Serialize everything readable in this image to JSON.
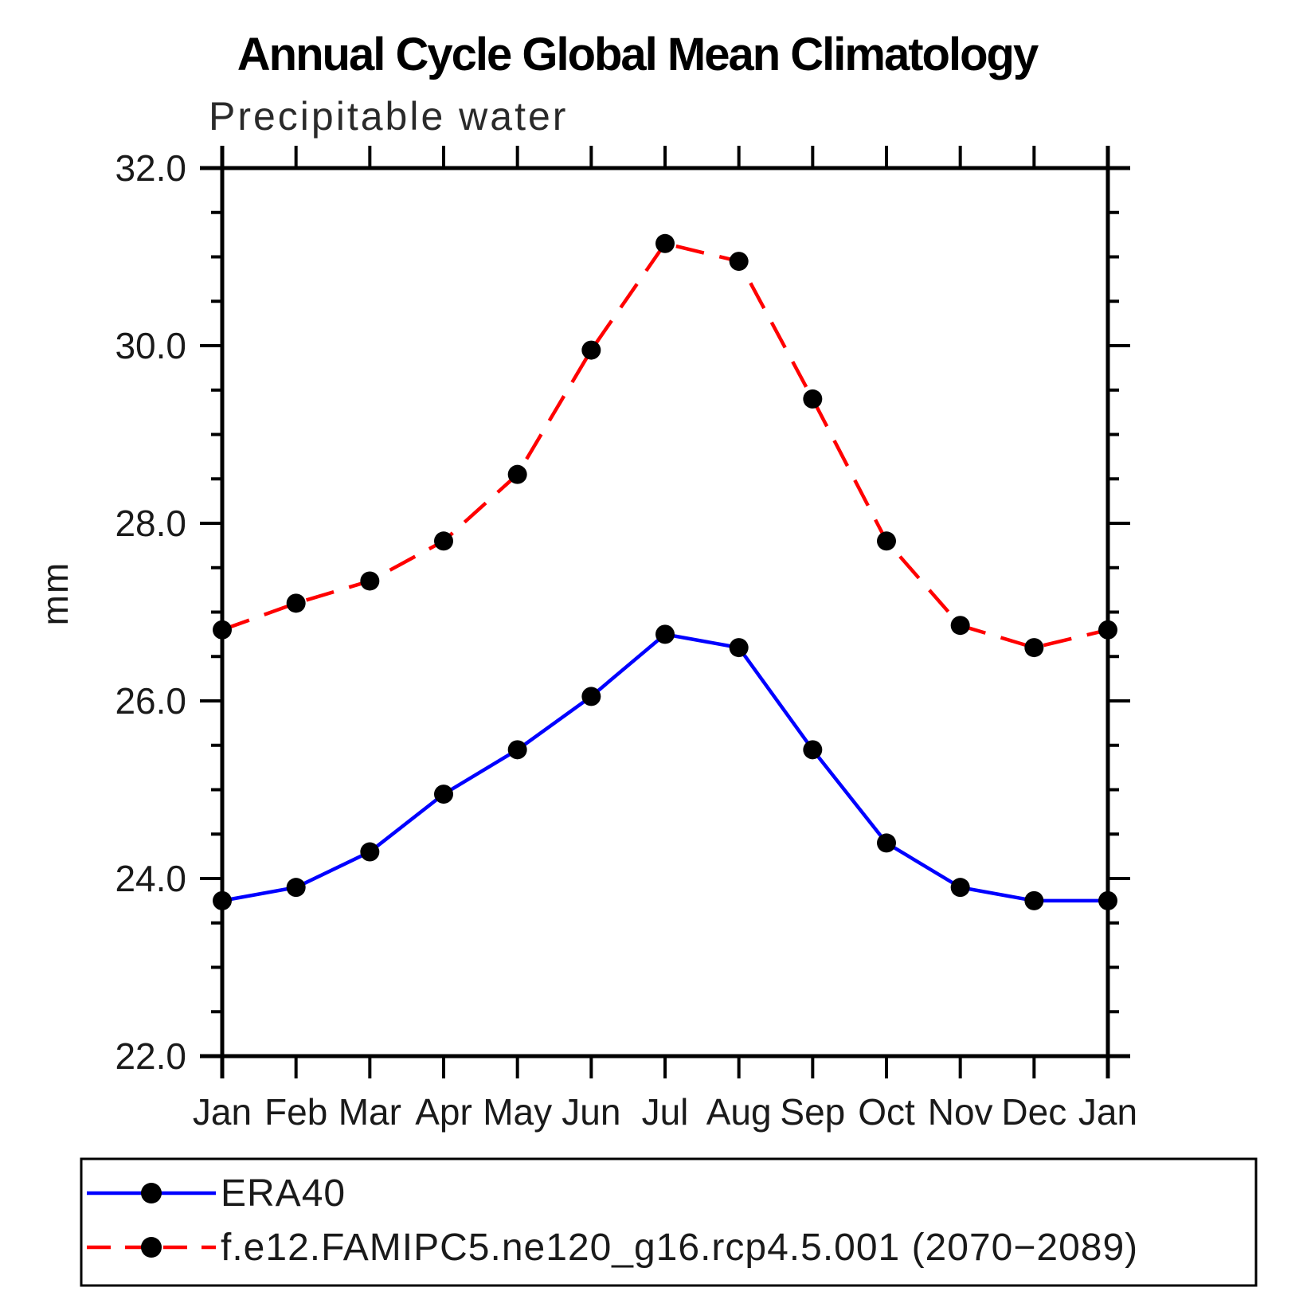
{
  "chart_data": {
    "type": "line",
    "title": "Annual Cycle Global Mean Climatology",
    "subtitle": "Precipitable water",
    "ylabel": "mm",
    "x_categories": [
      "Jan",
      "Feb",
      "Mar",
      "Apr",
      "May",
      "Jun",
      "Jul",
      "Aug",
      "Sep",
      "Oct",
      "Nov",
      "Dec",
      "Jan"
    ],
    "ylim": [
      22.0,
      32.0
    ],
    "ytick_major_step": 2.0,
    "ytick_minor_step": 0.5,
    "ytick_labels": [
      "22.0",
      "24.0",
      "26.0",
      "28.0",
      "30.0",
      "32.0"
    ],
    "grid": false,
    "legend_position": "bottom-left-box",
    "axis_color": "#000000",
    "series": [
      {
        "name": "ERA40",
        "color": "#0000ff",
        "line_style": "solid",
        "marker": "circle",
        "marker_color": "#000000",
        "values": [
          23.75,
          23.9,
          24.3,
          24.95,
          25.45,
          26.05,
          26.75,
          26.6,
          25.45,
          24.4,
          23.9,
          23.75,
          23.75
        ]
      },
      {
        "name": "f.e12.FAMIPC5.ne120_g16.rcp4.5.001 (2070−2089)",
        "color": "#ff0000",
        "line_style": "dashed",
        "marker": "circle",
        "marker_color": "#000000",
        "values": [
          26.8,
          27.1,
          27.35,
          27.8,
          28.55,
          29.95,
          31.15,
          30.95,
          29.4,
          27.8,
          26.85,
          26.6,
          26.8
        ]
      }
    ]
  }
}
